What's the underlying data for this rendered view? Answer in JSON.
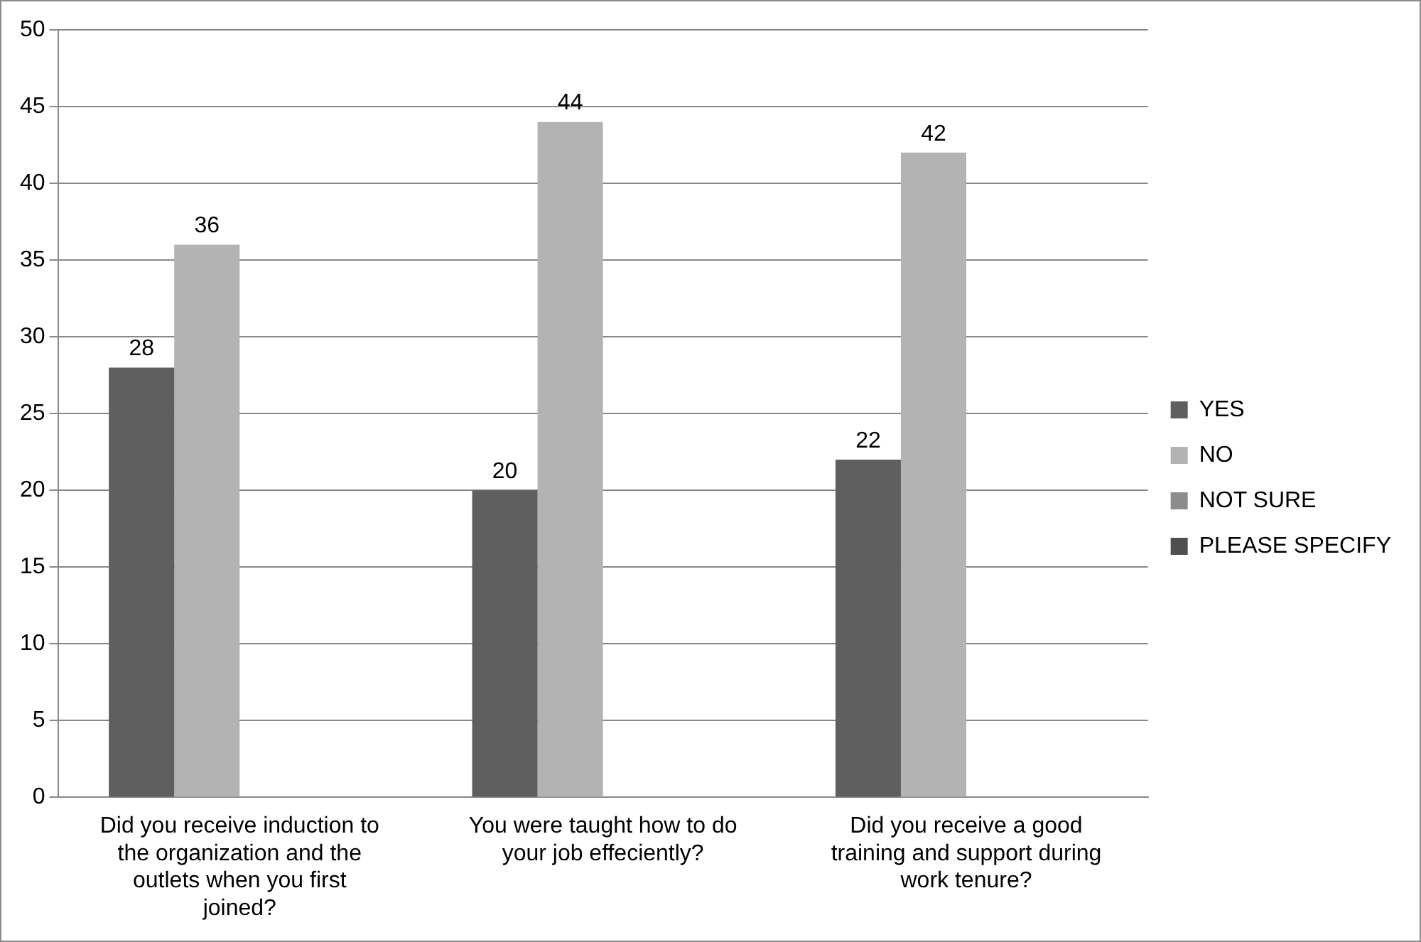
{
  "chart_data": {
    "type": "bar",
    "categories": [
      "Did you receive induction to the organization and the outlets when you first joined?",
      "You were taught how to do your job effeciently?",
      "Did you receive a good training and support during work tenure?"
    ],
    "series": [
      {
        "name": "YES",
        "color": "#5f5f5f",
        "values": [
          28,
          20,
          22
        ]
      },
      {
        "name": "NO",
        "color": "#b3b3b3",
        "values": [
          36,
          44,
          42
        ]
      },
      {
        "name": "NOT SURE",
        "color": "#8c8c8c",
        "values": [
          null,
          null,
          null
        ]
      },
      {
        "name": "PLEASE SPECIFY",
        "color": "#4f4f4f",
        "values": [
          null,
          null,
          null
        ]
      }
    ],
    "ylim": [
      0,
      50
    ],
    "yticks": [
      0,
      5,
      10,
      15,
      20,
      25,
      30,
      35,
      40,
      45,
      50
    ],
    "grid": "y",
    "legend": "right",
    "data_labels": true
  }
}
